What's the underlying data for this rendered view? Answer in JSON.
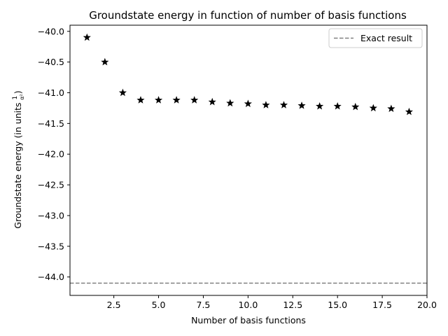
{
  "chart_data": {
    "type": "scatter",
    "title": "Groundstate energy in function of number of basis functions",
    "xlabel": "Number of basis functions",
    "ylabel": {
      "prefix": "Groundstate energy (in units ",
      "frac_num": "1",
      "frac_den": "α²",
      "suffix": ")"
    },
    "xlim": [
      0.05,
      20.0
    ],
    "ylim": [
      -44.3,
      -39.9
    ],
    "x_ticks": [
      2.5,
      5.0,
      7.5,
      10.0,
      12.5,
      15.0,
      17.5,
      20.0
    ],
    "x_tick_labels": [
      "2.5",
      "5.0",
      "7.5",
      "10.0",
      "12.5",
      "15.0",
      "17.5",
      "20.0"
    ],
    "y_ticks": [
      -40.0,
      -40.5,
      -41.0,
      -41.5,
      -42.0,
      -42.5,
      -43.0,
      -43.5,
      -44.0
    ],
    "y_tick_labels": [
      "−40.0",
      "−40.5",
      "−41.0",
      "−41.5",
      "−42.0",
      "−42.5",
      "−43.0",
      "−43.5",
      "−44.0"
    ],
    "grid": false,
    "series": [
      {
        "marker": "star",
        "color": "#000000",
        "x": [
          1,
          2,
          3,
          4,
          5,
          6,
          7,
          8,
          9,
          10,
          11,
          12,
          13,
          14,
          15,
          16,
          17,
          18,
          19
        ],
        "y": [
          -40.1,
          -40.5,
          -41.0,
          -41.12,
          -41.12,
          -41.12,
          -41.12,
          -41.15,
          -41.17,
          -41.18,
          -41.2,
          -41.2,
          -41.21,
          -41.22,
          -41.22,
          -41.23,
          -41.25,
          -41.26,
          -41.31
        ]
      }
    ],
    "reference_line": {
      "name": "Exact result",
      "y": -44.1,
      "color": "#808080",
      "style": "dashed"
    },
    "legend": {
      "placement": "top-right",
      "entries": [
        "Exact result"
      ]
    }
  }
}
